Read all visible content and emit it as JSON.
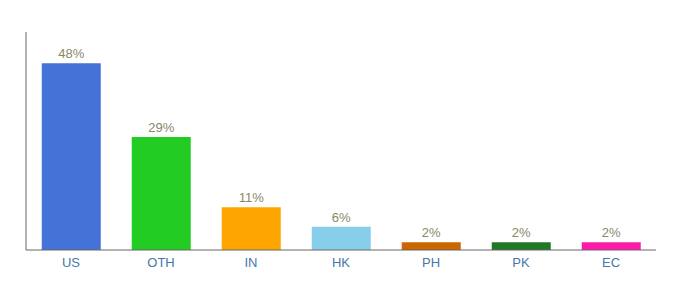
{
  "chart_data": {
    "type": "bar",
    "categories": [
      "US",
      "OTH",
      "IN",
      "HK",
      "PH",
      "PK",
      "EC"
    ],
    "values": [
      48,
      29,
      11,
      6,
      2,
      2,
      2
    ],
    "value_labels": [
      "48%",
      "29%",
      "11%",
      "6%",
      "2%",
      "2%",
      "2%"
    ],
    "data_labels": true,
    "colors": [
      "#4472d6",
      "#22cc22",
      "#ffa500",
      "#87ceeb",
      "#cc6600",
      "#227722",
      "#ff1aaa"
    ],
    "ylim": [
      0,
      56
    ],
    "grid": false,
    "tick_labels": "x"
  }
}
